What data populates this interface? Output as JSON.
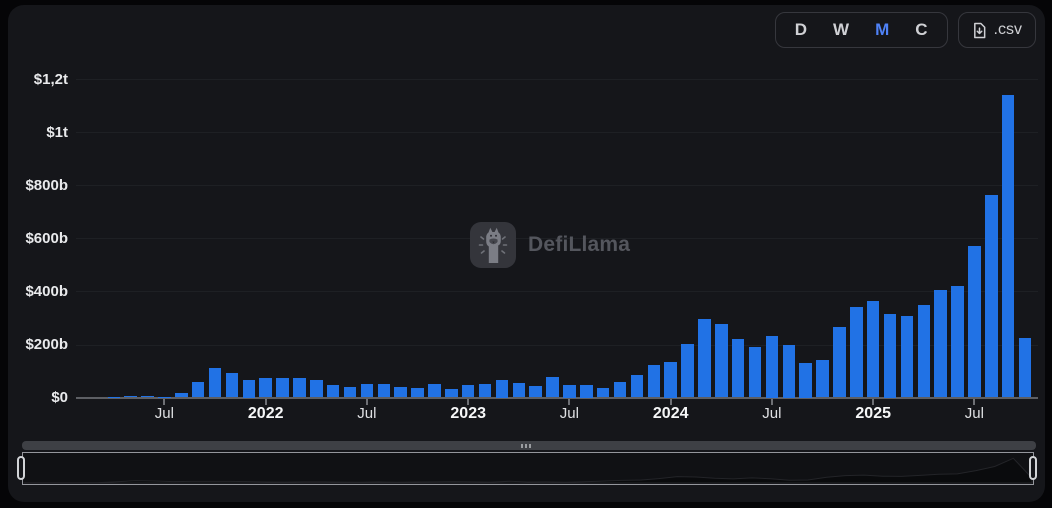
{
  "toolbar": {
    "intervals": [
      {
        "label": "D",
        "active": false
      },
      {
        "label": "W",
        "active": false
      },
      {
        "label": "M",
        "active": true
      },
      {
        "label": "C",
        "active": false
      }
    ],
    "csv_label": ".csv"
  },
  "watermark": {
    "text": "DefiLlama"
  },
  "colors": {
    "bar": "#2172e5",
    "active_interval": "#4f82f7",
    "panel_background": "#15161a",
    "axis_text": "#e9eaec"
  },
  "chart_data": {
    "type": "bar",
    "title": "",
    "xlabel": "",
    "ylabel": "",
    "unit": "USD (billions)",
    "ylim": [
      0,
      1200
    ],
    "grid": true,
    "legend_position": "none",
    "bar_color": "#2172e5",
    "y_ticks": [
      {
        "label": "$0",
        "value": 0
      },
      {
        "label": "$200b",
        "value": 200
      },
      {
        "label": "$400b",
        "value": 400
      },
      {
        "label": "$600b",
        "value": 600
      },
      {
        "label": "$800b",
        "value": 800
      },
      {
        "label": "$1t",
        "value": 1000
      },
      {
        "label": "$1,2t",
        "value": 1200
      }
    ],
    "x_tick_labels": [
      {
        "label": "Jul",
        "index": 3,
        "bold": false
      },
      {
        "label": "2022",
        "index": 9,
        "bold": true
      },
      {
        "label": "Jul",
        "index": 15,
        "bold": false
      },
      {
        "label": "2023",
        "index": 21,
        "bold": true
      },
      {
        "label": "Jul",
        "index": 27,
        "bold": false
      },
      {
        "label": "2024",
        "index": 33,
        "bold": true
      },
      {
        "label": "Jul",
        "index": 39,
        "bold": false
      },
      {
        "label": "2025",
        "index": 45,
        "bold": true
      },
      {
        "label": "Jul",
        "index": 51,
        "bold": false
      }
    ],
    "categories": [
      "Apr 2021",
      "May 2021",
      "Jun 2021",
      "Jul 2021",
      "Aug 2021",
      "Sep 2021",
      "Oct 2021",
      "Nov 2021",
      "Dec 2021",
      "Jan 2022",
      "Feb 2022",
      "Mar 2022",
      "Apr 2022",
      "May 2022",
      "Jun 2022",
      "Jul 2022",
      "Aug 2022",
      "Sep 2022",
      "Oct 2022",
      "Nov 2022",
      "Dec 2022",
      "Jan 2023",
      "Feb 2023",
      "Mar 2023",
      "Apr 2023",
      "May 2023",
      "Jun 2023",
      "Jul 2023",
      "Aug 2023",
      "Sep 2023",
      "Oct 2023",
      "Nov 2023",
      "Dec 2023",
      "Jan 2024",
      "Feb 2024",
      "Mar 2024",
      "Apr 2024",
      "May 2024",
      "Jun 2024",
      "Jul 2024",
      "Aug 2024",
      "Sep 2024",
      "Oct 2024",
      "Nov 2024",
      "Dec 2024",
      "Jan 2025",
      "Feb 2025",
      "Mar 2025",
      "Apr 2025",
      "May 2025",
      "Jun 2025",
      "Jul 2025",
      "Aug 2025",
      "Sep 2025",
      "Oct 2025"
    ],
    "values": [
      3,
      5,
      5,
      3,
      18,
      59,
      112,
      93,
      66,
      72,
      74,
      72,
      65,
      48,
      40,
      50,
      52,
      40,
      35,
      52,
      31,
      48,
      52,
      66,
      53,
      43,
      78,
      47,
      49,
      37,
      59,
      86,
      122,
      134,
      203,
      297,
      278,
      222,
      190,
      234,
      198,
      130,
      140,
      265,
      340,
      365,
      315,
      306,
      350,
      406,
      421,
      570,
      763,
      1140,
      224
    ]
  }
}
